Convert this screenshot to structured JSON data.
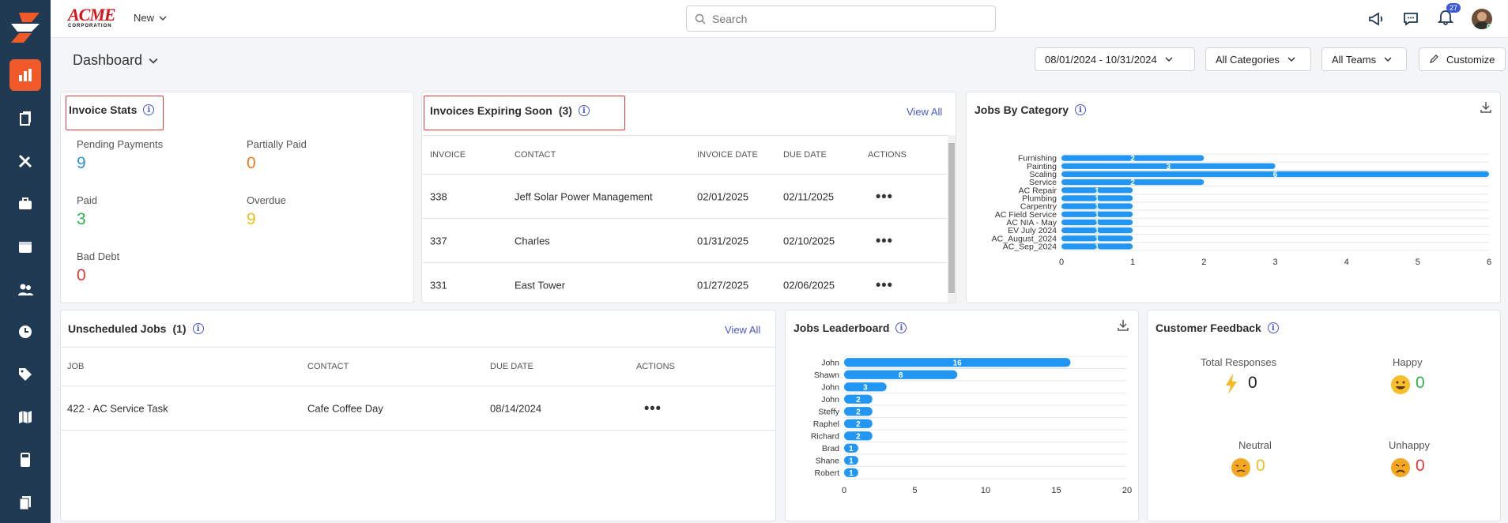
{
  "brand": {
    "logo_word": "ACME",
    "logo_sub": "CORPORATION"
  },
  "header": {
    "new_label": "New",
    "search_placeholder": "Search",
    "notification_count": "27"
  },
  "dashboard": {
    "title": "Dashboard",
    "date_range": "08/01/2024 - 10/31/2024",
    "categories_filter": "All Categories",
    "teams_filter": "All Teams",
    "customize_label": "Customize"
  },
  "invoice_stats": {
    "title": "Invoice Stats",
    "items": [
      {
        "label": "Pending Payments",
        "value": "9",
        "color": "#2f8fd8"
      },
      {
        "label": "Partially Paid",
        "value": "0",
        "color": "#f07a18"
      },
      {
        "label": "Paid",
        "value": "3",
        "color": "#2eb24c"
      },
      {
        "label": "Overdue",
        "value": "9",
        "color": "#e6c21a"
      },
      {
        "label": "Bad Debt",
        "value": "0",
        "color": "#e03a3a"
      }
    ]
  },
  "invoices_expiring": {
    "title": "Invoices Expiring Soon",
    "count": "(3)",
    "view_all": "View All",
    "columns": [
      "INVOICE",
      "CONTACT",
      "INVOICE DATE",
      "DUE DATE",
      "ACTIONS"
    ],
    "rows": [
      {
        "invoice": "338",
        "contact": "Jeff Solar Power Management",
        "invoice_date": "02/01/2025",
        "due_date": "02/11/2025",
        "actions": "•••"
      },
      {
        "invoice": "337",
        "contact": "Charles",
        "invoice_date": "01/31/2025",
        "due_date": "02/10/2025",
        "actions": "•••"
      },
      {
        "invoice": "331",
        "contact": "East Tower",
        "invoice_date": "01/27/2025",
        "due_date": "02/06/2025",
        "actions": "•••"
      }
    ]
  },
  "jobs_by_category": {
    "title": "Jobs By Category",
    "chart_data": {
      "type": "bar",
      "orientation": "horizontal",
      "categories": [
        "Furnishing",
        "Painting",
        "Scaling",
        "Service",
        "AC Repair",
        "Plumbing",
        "Carpentry",
        "AC Field Service",
        "AC NIA - May",
        "EV July 2024",
        "AC_August_2024",
        "AC_Sep_2024"
      ],
      "values": [
        2,
        3,
        6,
        2,
        1,
        1,
        1,
        1,
        1,
        1,
        1,
        1
      ],
      "xlim": [
        0,
        6
      ],
      "xticks": [
        "0",
        "1",
        "2",
        "3",
        "4",
        "5",
        "6"
      ],
      "bar_color": "#2196f3",
      "grid": true
    }
  },
  "unscheduled_jobs": {
    "title": "Unscheduled Jobs",
    "count": "(1)",
    "view_all": "View All",
    "columns": [
      "JOB",
      "CONTACT",
      "DUE DATE",
      "ACTIONS"
    ],
    "rows": [
      {
        "job": "422 - AC Service Task",
        "contact": "Cafe Coffee Day",
        "due_date": "08/14/2024",
        "actions": "•••"
      }
    ]
  },
  "jobs_leaderboard": {
    "title": "Jobs Leaderboard",
    "chart_data": {
      "type": "bar",
      "orientation": "horizontal",
      "categories": [
        "John",
        "Shawn",
        "John",
        "John",
        "Steffy",
        "Raphel",
        "Richard",
        "Brad",
        "Shane",
        "Robert"
      ],
      "values": [
        16,
        8,
        3,
        2,
        2,
        2,
        2,
        1,
        1,
        1
      ],
      "xlim": [
        0,
        20
      ],
      "xticks": [
        "0",
        "5",
        "10",
        "15",
        "20"
      ],
      "bar_color": "#2196f3",
      "grid": true
    }
  },
  "customer_feedback": {
    "title": "Customer Feedback",
    "total_label": "Total Responses",
    "total_value": "0",
    "happy_label": "Happy",
    "happy_value": "0",
    "neutral_label": "Neutral",
    "neutral_value": "0",
    "unhappy_label": "Unhappy",
    "unhappy_value": "0"
  }
}
